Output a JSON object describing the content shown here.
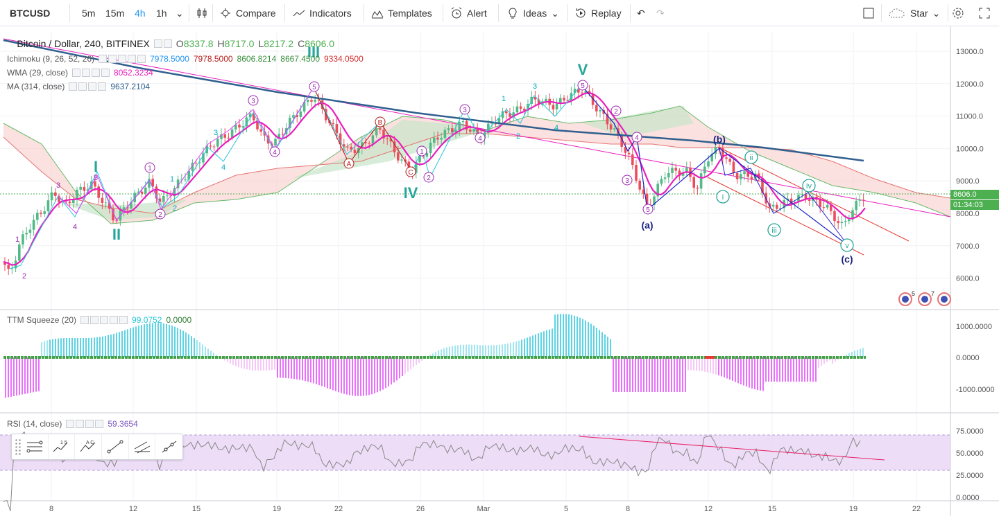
{
  "toolbar": {
    "symbol": "BTCUSD",
    "intervals": [
      "5m",
      "15m",
      "4h",
      "1h"
    ],
    "active_interval": "4h",
    "compare": "Compare",
    "indicators": "Indicators",
    "templates": "Templates",
    "alert": "Alert",
    "ideas": "Ideas",
    "replay": "Replay",
    "star": "Star"
  },
  "legend": {
    "title": "Bitcoin / Dollar, 240, BITFINEX",
    "o_label": "O",
    "o": "8337.8",
    "h_label": "H",
    "h": "8717.0",
    "l_label": "L",
    "l": "8217.2",
    "c_label": "C",
    "c": "8606.0",
    "ichimoku": "Ichimoku (9, 26, 52, 26)",
    "ichi_vals": [
      "7978.5000",
      "7978.5000",
      "8606.8214",
      "8667.4500",
      "9334.0500"
    ],
    "wma": "WMA (29, close)",
    "wma_val": "8052.3234",
    "ma": "MA (314, close)",
    "ma_val": "9637.2104",
    "ttm": "TTM Squeeze (20)",
    "ttm_v1": "99.0752",
    "ttm_v2": "0.0000",
    "rsi": "RSI (14, close)",
    "rsi_val": "59.3654"
  },
  "price_axis": [
    "13000.0",
    "12000.0",
    "11000.0",
    "10000.0",
    "9000.0",
    "8000.0",
    "7000.0",
    "6000.0"
  ],
  "last_price": "8606.0",
  "countdown": "01:34:03",
  "ttm_axis": [
    "1000.0000",
    "0.0000",
    "-1000.0000"
  ],
  "rsi_axis": [
    "75.0000",
    "50.0000",
    "25.0000",
    "0.0000"
  ],
  "time_axis": [
    "8",
    "12",
    "15",
    "19",
    "22",
    "26",
    "Mar",
    "5",
    "8",
    "12",
    "15",
    "19",
    "22"
  ],
  "wave_labels": {
    "big": [
      "I",
      "II",
      "III",
      "IV",
      "V"
    ],
    "abc": [
      "(a)",
      "(b)",
      "(c)"
    ],
    "small_cyan": [
      "1",
      "2",
      "3",
      "4",
      "5"
    ],
    "minor": [
      "1",
      "2",
      "3",
      "4",
      "5"
    ],
    "corrective": [
      "A",
      "B",
      "C"
    ],
    "roman_small": [
      "i",
      "ii",
      "iii",
      "iv",
      "v"
    ]
  },
  "badges": [
    "5",
    "7"
  ],
  "colors": {
    "candle_up": "#53b987",
    "candle_down": "#eb4d5c",
    "wma": "#e91ebd",
    "ma": "#2f5f8f",
    "cloud_up": "#c8e6c9",
    "cloud_down": "#f8c8c4",
    "wave_cyan": "#26c6da",
    "wave_blue": "#1e22c8",
    "wave_purple": "#9c27b0",
    "rsi_band": "#e9d5f5",
    "last_price": "#4caf50"
  }
}
